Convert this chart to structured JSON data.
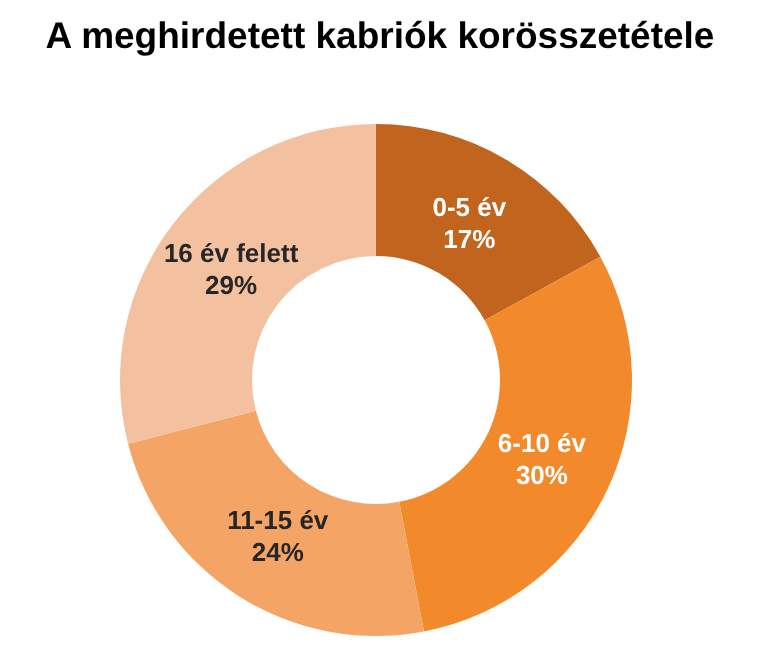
{
  "chart_data": {
    "type": "donut",
    "title": "A meghirdetett kabriók korösszetétele",
    "categories": [
      "0-5 év",
      "6-10 év",
      "11-15 év",
      "16 év felett"
    ],
    "values": [
      17,
      30,
      24,
      29
    ],
    "colors": [
      "#c0641e",
      "#f28a2c",
      "#f4a566",
      "#f3c0a0"
    ],
    "value_labels": [
      "17%",
      "30%",
      "24%",
      "29%"
    ],
    "legend": false
  }
}
